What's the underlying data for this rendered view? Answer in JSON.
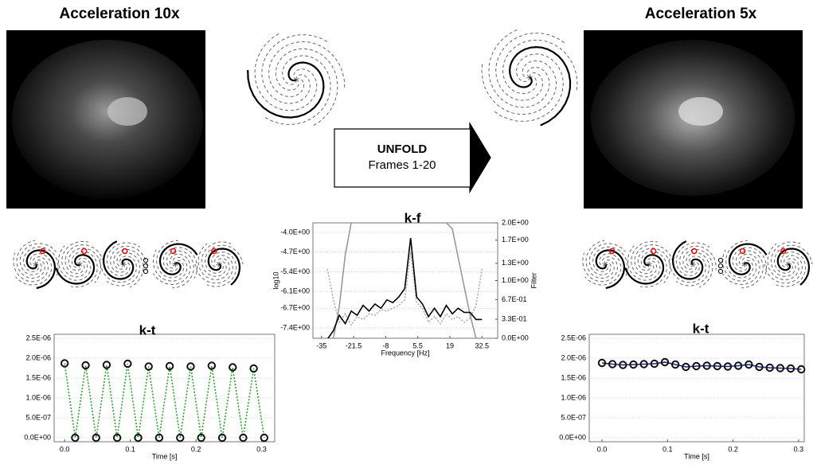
{
  "labels": {
    "left_title": "Acceleration 10x",
    "right_title": "Acceleration 5x",
    "unfold": "UNFOLD",
    "frames": "Frames 1-20"
  },
  "chart_data": [
    {
      "type": "line",
      "title": "k-t",
      "xlabel": "Time [s]",
      "grid": true,
      "x": [
        0,
        0.016,
        0.032,
        0.048,
        0.064,
        0.08,
        0.096,
        0.112,
        0.128,
        0.144,
        0.16,
        0.176,
        0.192,
        0.208,
        0.224,
        0.24,
        0.256,
        0.272,
        0.288,
        0.304
      ],
      "series": [
        {
          "color": "#2ca02c",
          "linestyle": "dotted",
          "markers": true,
          "marker_color": "#111111",
          "values": [
            1.87e-06,
            0,
            1.82e-06,
            0,
            1.83e-06,
            0,
            1.86e-06,
            0,
            1.79e-06,
            0,
            1.8e-06,
            0,
            1.79e-06,
            0,
            1.81e-06,
            0,
            1.77e-06,
            0,
            1.74e-06,
            0
          ]
        }
      ],
      "xlim": [
        -0.016,
        0.32
      ],
      "xticks": [
        {
          "value": 0,
          "label": "0.0"
        },
        0.1,
        0.2,
        0.3
      ],
      "ylim": [
        -1e-07,
        2.6e-06
      ],
      "yticks": [
        {
          "value": 0,
          "label": "0.0E+00"
        },
        {
          "value": 5e-07,
          "label": "5.0E-07"
        },
        {
          "value": 1e-06,
          "label": "1.0E-06"
        },
        {
          "value": 1.5e-06,
          "label": "1.5E-06"
        },
        {
          "value": 2e-06,
          "label": "2.0E-06"
        },
        {
          "value": 2.5e-06,
          "label": "2.5E-06"
        }
      ]
    },
    {
      "type": "line",
      "title": "k-f",
      "xlabel": "Frequency [Hz]",
      "ylabel": "log10",
      "y2label": "Filter",
      "grid": true,
      "x": [
        -32.5,
        -30,
        -27.5,
        -25,
        -22.5,
        -20,
        -17.5,
        -15,
        -12.5,
        -10,
        -7.5,
        -5,
        -2.5,
        0,
        2.5,
        5,
        7.5,
        10,
        12.5,
        15,
        17.5,
        20,
        22.5,
        25,
        27.5,
        30,
        32.5
      ],
      "series": [
        {
          "color": "#aaaaaa",
          "linestyle": "dotted",
          "values": [
            -5.3,
            -6.4,
            -7.2,
            -6.9,
            -7.3,
            -7.0,
            -7.1,
            -6.9,
            -6.95,
            -6.75,
            -6.8,
            -6.7,
            -6.6,
            -6.4,
            -4.7,
            -6.5,
            -6.7,
            -7.2,
            -7.0,
            -7.25,
            -6.9,
            -7.1,
            -7.0,
            -7.2,
            -7.05,
            -6.6,
            -5.3
          ]
        },
        {
          "color": "#999999",
          "axis": "y2",
          "values": [
            0,
            0,
            0.55,
            1.45,
            2.0,
            2.0,
            2.0,
            2.0,
            2.0,
            2.0,
            2.0,
            2.0,
            2.0,
            2.0,
            2.0,
            2.0,
            2.0,
            2.0,
            2.0,
            2.0,
            2.0,
            1.9,
            1.4,
            0.9,
            0.4,
            0,
            0
          ]
        },
        {
          "color": "#000000",
          "values": [
            -7.8,
            -7.5,
            -6.95,
            -7.25,
            -6.8,
            -6.95,
            -6.6,
            -6.8,
            -6.55,
            -6.7,
            -6.4,
            -6.5,
            -6.3,
            -6.0,
            -4.2,
            -6.3,
            -6.55,
            -7.0,
            -6.7,
            -7.0,
            -6.6,
            -6.9,
            -6.7,
            -6.85,
            -6.85,
            -7.1,
            -7.1
          ]
        }
      ],
      "xlim": [
        -38.6,
        39.1
      ],
      "xticks": [
        -35.0,
        -21.5,
        -8.0,
        5.5,
        19.0,
        32.5
      ],
      "ylim": [
        -7.77,
        -3.66
      ],
      "yticks": [
        {
          "value": -7.4,
          "label": "-7.4E+00"
        },
        {
          "value": -6.7,
          "label": "-6.7E+00"
        },
        {
          "value": -6.1,
          "label": "-6.1E+00"
        },
        {
          "value": -5.4,
          "label": "-5.4E+00"
        },
        {
          "value": -4.7,
          "label": "-4.7E+00"
        },
        {
          "value": -4.0,
          "label": "-4.0E+00"
        }
      ],
      "y2lim": [
        0,
        2.0
      ],
      "y2ticks": [
        {
          "value": 0,
          "label": "0.0E+00"
        },
        {
          "value": 0.33,
          "label": "3.3E-01"
        },
        {
          "value": 0.67,
          "label": "6.7E-01"
        },
        {
          "value": 1.0,
          "label": "1.0E+00"
        },
        {
          "value": 1.3,
          "label": "1.3E+00"
        },
        {
          "value": 1.7,
          "label": "1.7E+00"
        },
        {
          "value": 2.0,
          "label": "2.0E+00"
        }
      ]
    },
    {
      "type": "line",
      "title": "k-t",
      "xlabel": "Time [s]",
      "grid": true,
      "x": [
        0,
        0.016,
        0.032,
        0.048,
        0.064,
        0.08,
        0.096,
        0.112,
        0.128,
        0.144,
        0.16,
        0.176,
        0.192,
        0.208,
        0.224,
        0.24,
        0.256,
        0.272,
        0.288,
        0.304
      ],
      "series": [
        {
          "color": "#1a237e",
          "markers": true,
          "marker_color": "#111111",
          "values": [
            1.88e-06,
            1.85e-06,
            1.83e-06,
            1.84e-06,
            1.85e-06,
            1.86e-06,
            1.9e-06,
            1.84e-06,
            1.78e-06,
            1.8e-06,
            1.81e-06,
            1.8e-06,
            1.79e-06,
            1.81e-06,
            1.84e-06,
            1.78e-06,
            1.76e-06,
            1.75e-06,
            1.74e-06,
            1.72e-06
          ]
        }
      ],
      "xlim": [
        -0.0194,
        0.3086
      ],
      "xticks": [
        {
          "value": 0,
          "label": "0.0"
        },
        0.1,
        0.2,
        0.3
      ],
      "ylim": [
        -1e-07,
        2.6e-06
      ],
      "yticks": [
        {
          "value": 0,
          "label": "0.0E+00"
        },
        {
          "value": 5e-07,
          "label": "5.0E-07"
        },
        {
          "value": 1e-06,
          "label": "1.0E-06"
        },
        {
          "value": 1.5e-06,
          "label": "1.5E-06"
        },
        {
          "value": 2e-06,
          "label": "2.0E-06"
        },
        {
          "value": 2.5e-06,
          "label": "2.5E-06"
        }
      ]
    }
  ]
}
